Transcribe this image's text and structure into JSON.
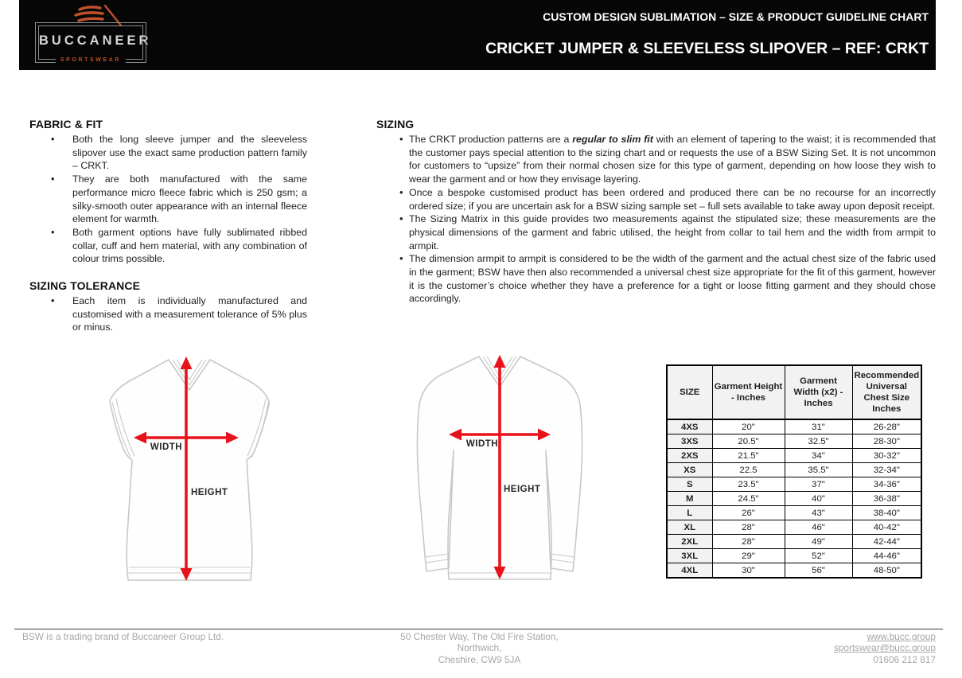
{
  "header": {
    "title_line1": "CUSTOM DESIGN SUBLIMATION – SIZE & PRODUCT GUIDELINE CHART",
    "title_line2": "CRICKET JUMPER & SLEEVELESS SLIPOVER – REF: CRKT",
    "logo": {
      "brand": "BUCCANEER",
      "sub": "SPORTSWEAR",
      "accent_color": "#c0512b",
      "bar_color": "#060606"
    }
  },
  "sections": {
    "fabric_fit": {
      "title": "FABRIC & FIT",
      "bullets": [
        [
          {
            "t": "Both the long sleeve jumper and the sleeveless slipover use the exact same production pattern family – CRKT."
          }
        ],
        [
          {
            "t": "They are both manufactured with the same performance micro fleece fabric which is 250 gsm; a silky-smooth outer appearance with an internal fleece element for warmth."
          }
        ],
        [
          {
            "t": "Both garment options have fully sublimated ribbed collar, cuff and hem material, with any combination of colour trims possible."
          }
        ]
      ]
    },
    "sizing_tolerance": {
      "title": "SIZING TOLERANCE",
      "bullets": [
        [
          {
            "t": "Each item is individually manufactured and customised with a measurement tolerance of 5% plus or minus."
          }
        ]
      ]
    },
    "sizing": {
      "title": "SIZING",
      "bullets": [
        [
          {
            "t": "The CRKT production patterns are a "
          },
          {
            "t": "regular to slim fit",
            "em": true
          },
          {
            "t": " with an element of tapering to the waist; it is recommended that the customer pays special attention to the sizing chart and or requests the use of a BSW Sizing Set. It is not uncommon for customers to “upsize” from their normal chosen size for this type of garment, depending on how loose they wish to wear the garment and or how they envisage layering."
          }
        ],
        [
          {
            "t": "Once a bespoke customised product has been ordered and produced there can be no recourse for an incorrectly ordered size; if you are uncertain ask for a BSW sizing sample set – full sets available to take away upon deposit receipt."
          }
        ],
        [
          {
            "t": "The Sizing Matrix in this guide provides two measurements against the stipulated size; these measurements are the physical dimensions of the garment and fabric utilised, the height from collar to tail hem and the width from armpit to armpit."
          }
        ],
        [
          {
            "t": "The dimension armpit to armpit is considered to be the width of the garment and the actual chest size of the fabric used in the garment; BSW have then also recommended a universal chest size appropriate for the fit of this garment, however it is the customer’s choice whether they have a preference for a tight or loose fitting garment and they should chose accordingly."
          }
        ]
      ]
    }
  },
  "diagrams": {
    "width_label": "WIDTH",
    "height_label": "HEIGHT",
    "arrow_color": "#e8121a",
    "items": [
      "sleeveless-slipover",
      "long-sleeve-jumper"
    ]
  },
  "chart_data": {
    "type": "table",
    "title": "CRKT Sizing Matrix",
    "columns": [
      "SIZE",
      "Garment Height - Inches",
      "Garment Width (x2) - Inches",
      "Recommended Universal Chest Size Inches"
    ],
    "rows": [
      [
        "4XS",
        "20\"",
        "31\"",
        "26-28\""
      ],
      [
        "3XS",
        "20.5\"",
        "32.5\"",
        "28-30\""
      ],
      [
        "2XS",
        "21.5\"",
        "34\"",
        "30-32\""
      ],
      [
        "XS",
        "22.5",
        "35.5\"",
        "32-34\""
      ],
      [
        "S",
        "23.5\"",
        "37\"",
        "34-36\""
      ],
      [
        "M",
        "24.5\"",
        "40\"",
        "36-38\""
      ],
      [
        "L",
        "26\"",
        "43\"",
        "38-40\""
      ],
      [
        "XL",
        "28\"",
        "46\"",
        "40-42\""
      ],
      [
        "2XL",
        "28\"",
        "49\"",
        "42-44\""
      ],
      [
        "3XL",
        "29\"",
        "52\"",
        "44-46\""
      ],
      [
        "4XL",
        "30\"",
        "56\"",
        "48-50\""
      ]
    ]
  },
  "footer": {
    "left": "BSW is a trading brand of Buccaneer Group Ltd.",
    "address_lines": [
      "50 Chester Way, The Old Fire Station,",
      "Northwich,",
      "Cheshire, CW9 5JA"
    ],
    "website": "www.bucc.group",
    "email": "sportswear@bucc.group",
    "phone": "01606 212 817"
  }
}
